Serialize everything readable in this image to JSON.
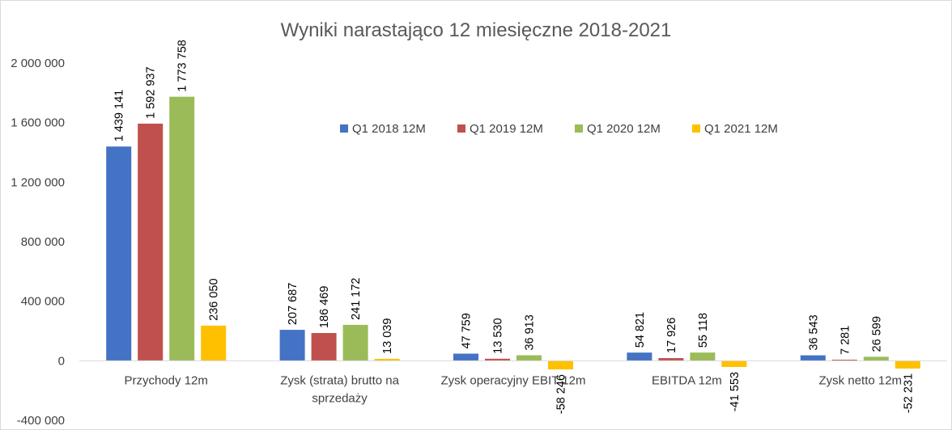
{
  "chart_data": {
    "type": "bar",
    "title": "Wyniki narastająco 12 miesięczne 2018-2021",
    "xlabel": "",
    "ylabel": "",
    "ylim": [
      -400000,
      2000000
    ],
    "yticks": [
      -400000,
      0,
      400000,
      800000,
      1200000,
      1600000,
      2000000
    ],
    "ytick_labels": [
      "-400 000",
      "0",
      "400 000",
      "800 000",
      "1 200 000",
      "1 600 000",
      "2 000 000"
    ],
    "grid": false,
    "legend_position": "top-right",
    "categories": [
      [
        "Przychody 12m"
      ],
      [
        "Zysk (strata) brutto na",
        "sprzedaży"
      ],
      [
        "Zysk operacyjny EBIT 12m"
      ],
      [
        "EBITDA 12m"
      ],
      [
        "Zysk netto 12m"
      ]
    ],
    "series": [
      {
        "name": "Q1 2018 12M",
        "color": "#4472c4",
        "values": [
          1439141,
          207687,
          47759,
          54821,
          36543
        ],
        "labels": [
          "1 439 141",
          "207 687",
          "47 759",
          "54 821",
          "36 543"
        ]
      },
      {
        "name": "Q1 2019 12M",
        "color": "#c0504d",
        "values": [
          1592937,
          186469,
          13530,
          17926,
          7281
        ],
        "labels": [
          "1 592 937",
          "186 469",
          "13 530",
          "17 926",
          "7 281"
        ]
      },
      {
        "name": "Q1 2020 12M",
        "color": "#9bbb59",
        "values": [
          1773758,
          241172,
          36913,
          55118,
          26599
        ],
        "labels": [
          "1 773 758",
          "241 172",
          "36 913",
          "55 118",
          "26 599"
        ]
      },
      {
        "name": "Q1 2021 12M",
        "color": "#ffc000",
        "values": [
          236050,
          13039,
          -58246,
          -41553,
          -52231
        ],
        "labels": [
          "236 050",
          "13 039",
          "-58 246",
          "-41 553",
          "-52 231"
        ]
      }
    ]
  }
}
